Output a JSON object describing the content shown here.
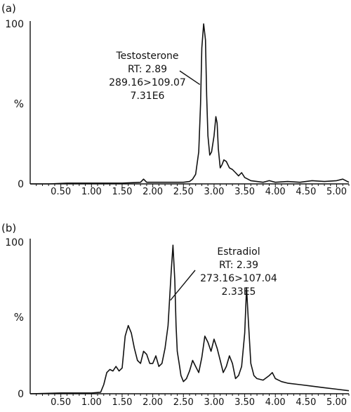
{
  "chart_data": [
    {
      "type": "line",
      "panel_label": "(a)",
      "xlim": [
        0,
        5.2
      ],
      "ylim": [
        0,
        100
      ],
      "y_tick_labels": [
        "100",
        "%",
        "0"
      ],
      "x_tick_labels": [
        "0.50",
        "1.00",
        "1.50",
        "2.00",
        "2.50",
        "3.00",
        "3.50",
        "4.00",
        "4.50",
        "5.00"
      ],
      "x_tick_values": [
        0.5,
        1.0,
        1.5,
        2.0,
        2.5,
        3.0,
        3.5,
        4.0,
        4.5,
        5.0
      ],
      "annotation": {
        "lines": [
          "Testosterone",
          "RT: 2.89",
          "289.16>109.07",
          "7.31E6"
        ],
        "points_to": [
          2.86,
          70
        ]
      },
      "series": [
        {
          "x": [
            0.0,
            0.3,
            0.6,
            0.9,
            1.2,
            1.5,
            1.8,
            1.85,
            1.9,
            2.1,
            2.3,
            2.5,
            2.6,
            2.65,
            2.7,
            2.75,
            2.78,
            2.8,
            2.83,
            2.86,
            2.88,
            2.9,
            2.93,
            2.96,
            3.0,
            3.03,
            3.05,
            3.07,
            3.1,
            3.13,
            3.16,
            3.2,
            3.25,
            3.3,
            3.35,
            3.4,
            3.45,
            3.5,
            3.6,
            3.7,
            3.8,
            3.9,
            4.0,
            4.2,
            4.4,
            4.6,
            4.8,
            5.0,
            5.1,
            5.2
          ],
          "y": [
            0,
            0,
            0.5,
            0.5,
            0.5,
            0.5,
            1,
            3,
            1,
            1,
            1,
            1,
            1.5,
            3,
            6,
            20,
            50,
            85,
            100,
            90,
            55,
            30,
            18,
            20,
            30,
            42,
            38,
            22,
            10,
            12,
            15,
            14,
            10,
            9,
            7,
            5,
            7,
            4,
            2,
            1.5,
            1,
            2,
            1,
            1.5,
            1,
            2,
            1.5,
            2,
            3,
            1
          ]
        }
      ]
    },
    {
      "type": "line",
      "panel_label": "(b)",
      "xlim": [
        0,
        5.2
      ],
      "ylim": [
        0,
        100
      ],
      "y_tick_labels": [
        "100",
        "%",
        "0"
      ],
      "x_tick_labels": [
        "0.50",
        "1.00",
        "1.50",
        "2.00",
        "2.50",
        "3.00",
        "3.50",
        "4.00",
        "4.50",
        "5.00"
      ],
      "x_tick_values": [
        0.5,
        1.0,
        1.5,
        2.0,
        2.5,
        3.0,
        3.5,
        4.0,
        4.5,
        5.0
      ],
      "annotation": {
        "lines": [
          "Estradiol",
          "RT: 2.39",
          "273.16>107.04",
          "2.33E5"
        ],
        "points_to": [
          2.38,
          70
        ]
      },
      "series": [
        {
          "x": [
            0.0,
            0.5,
            1.0,
            1.15,
            1.2,
            1.25,
            1.3,
            1.35,
            1.4,
            1.45,
            1.5,
            1.55,
            1.6,
            1.65,
            1.7,
            1.75,
            1.8,
            1.85,
            1.9,
            1.95,
            2.0,
            2.05,
            2.1,
            2.15,
            2.2,
            2.25,
            2.3,
            2.33,
            2.36,
            2.38,
            2.4,
            2.43,
            2.46,
            2.5,
            2.55,
            2.6,
            2.65,
            2.7,
            2.75,
            2.8,
            2.85,
            2.9,
            2.95,
            3.0,
            3.05,
            3.1,
            3.15,
            3.2,
            3.25,
            3.3,
            3.35,
            3.4,
            3.45,
            3.5,
            3.53,
            3.56,
            3.6,
            3.65,
            3.7,
            3.8,
            3.9,
            3.95,
            4.0,
            4.1,
            4.2,
            4.4,
            4.6,
            4.8,
            5.0,
            5.2
          ],
          "y": [
            0,
            0.5,
            0.5,
            1,
            6,
            14,
            16,
            15,
            18,
            15,
            17,
            38,
            45,
            40,
            30,
            22,
            20,
            28,
            26,
            20,
            20,
            25,
            18,
            20,
            30,
            45,
            80,
            98,
            75,
            45,
            28,
            20,
            12,
            8,
            10,
            15,
            22,
            18,
            14,
            24,
            38,
            34,
            28,
            36,
            30,
            22,
            14,
            18,
            25,
            20,
            10,
            12,
            18,
            40,
            70,
            48,
            20,
            12,
            10,
            9,
            12,
            14,
            10,
            8,
            7,
            6,
            5,
            4,
            3,
            2
          ]
        }
      ]
    }
  ]
}
